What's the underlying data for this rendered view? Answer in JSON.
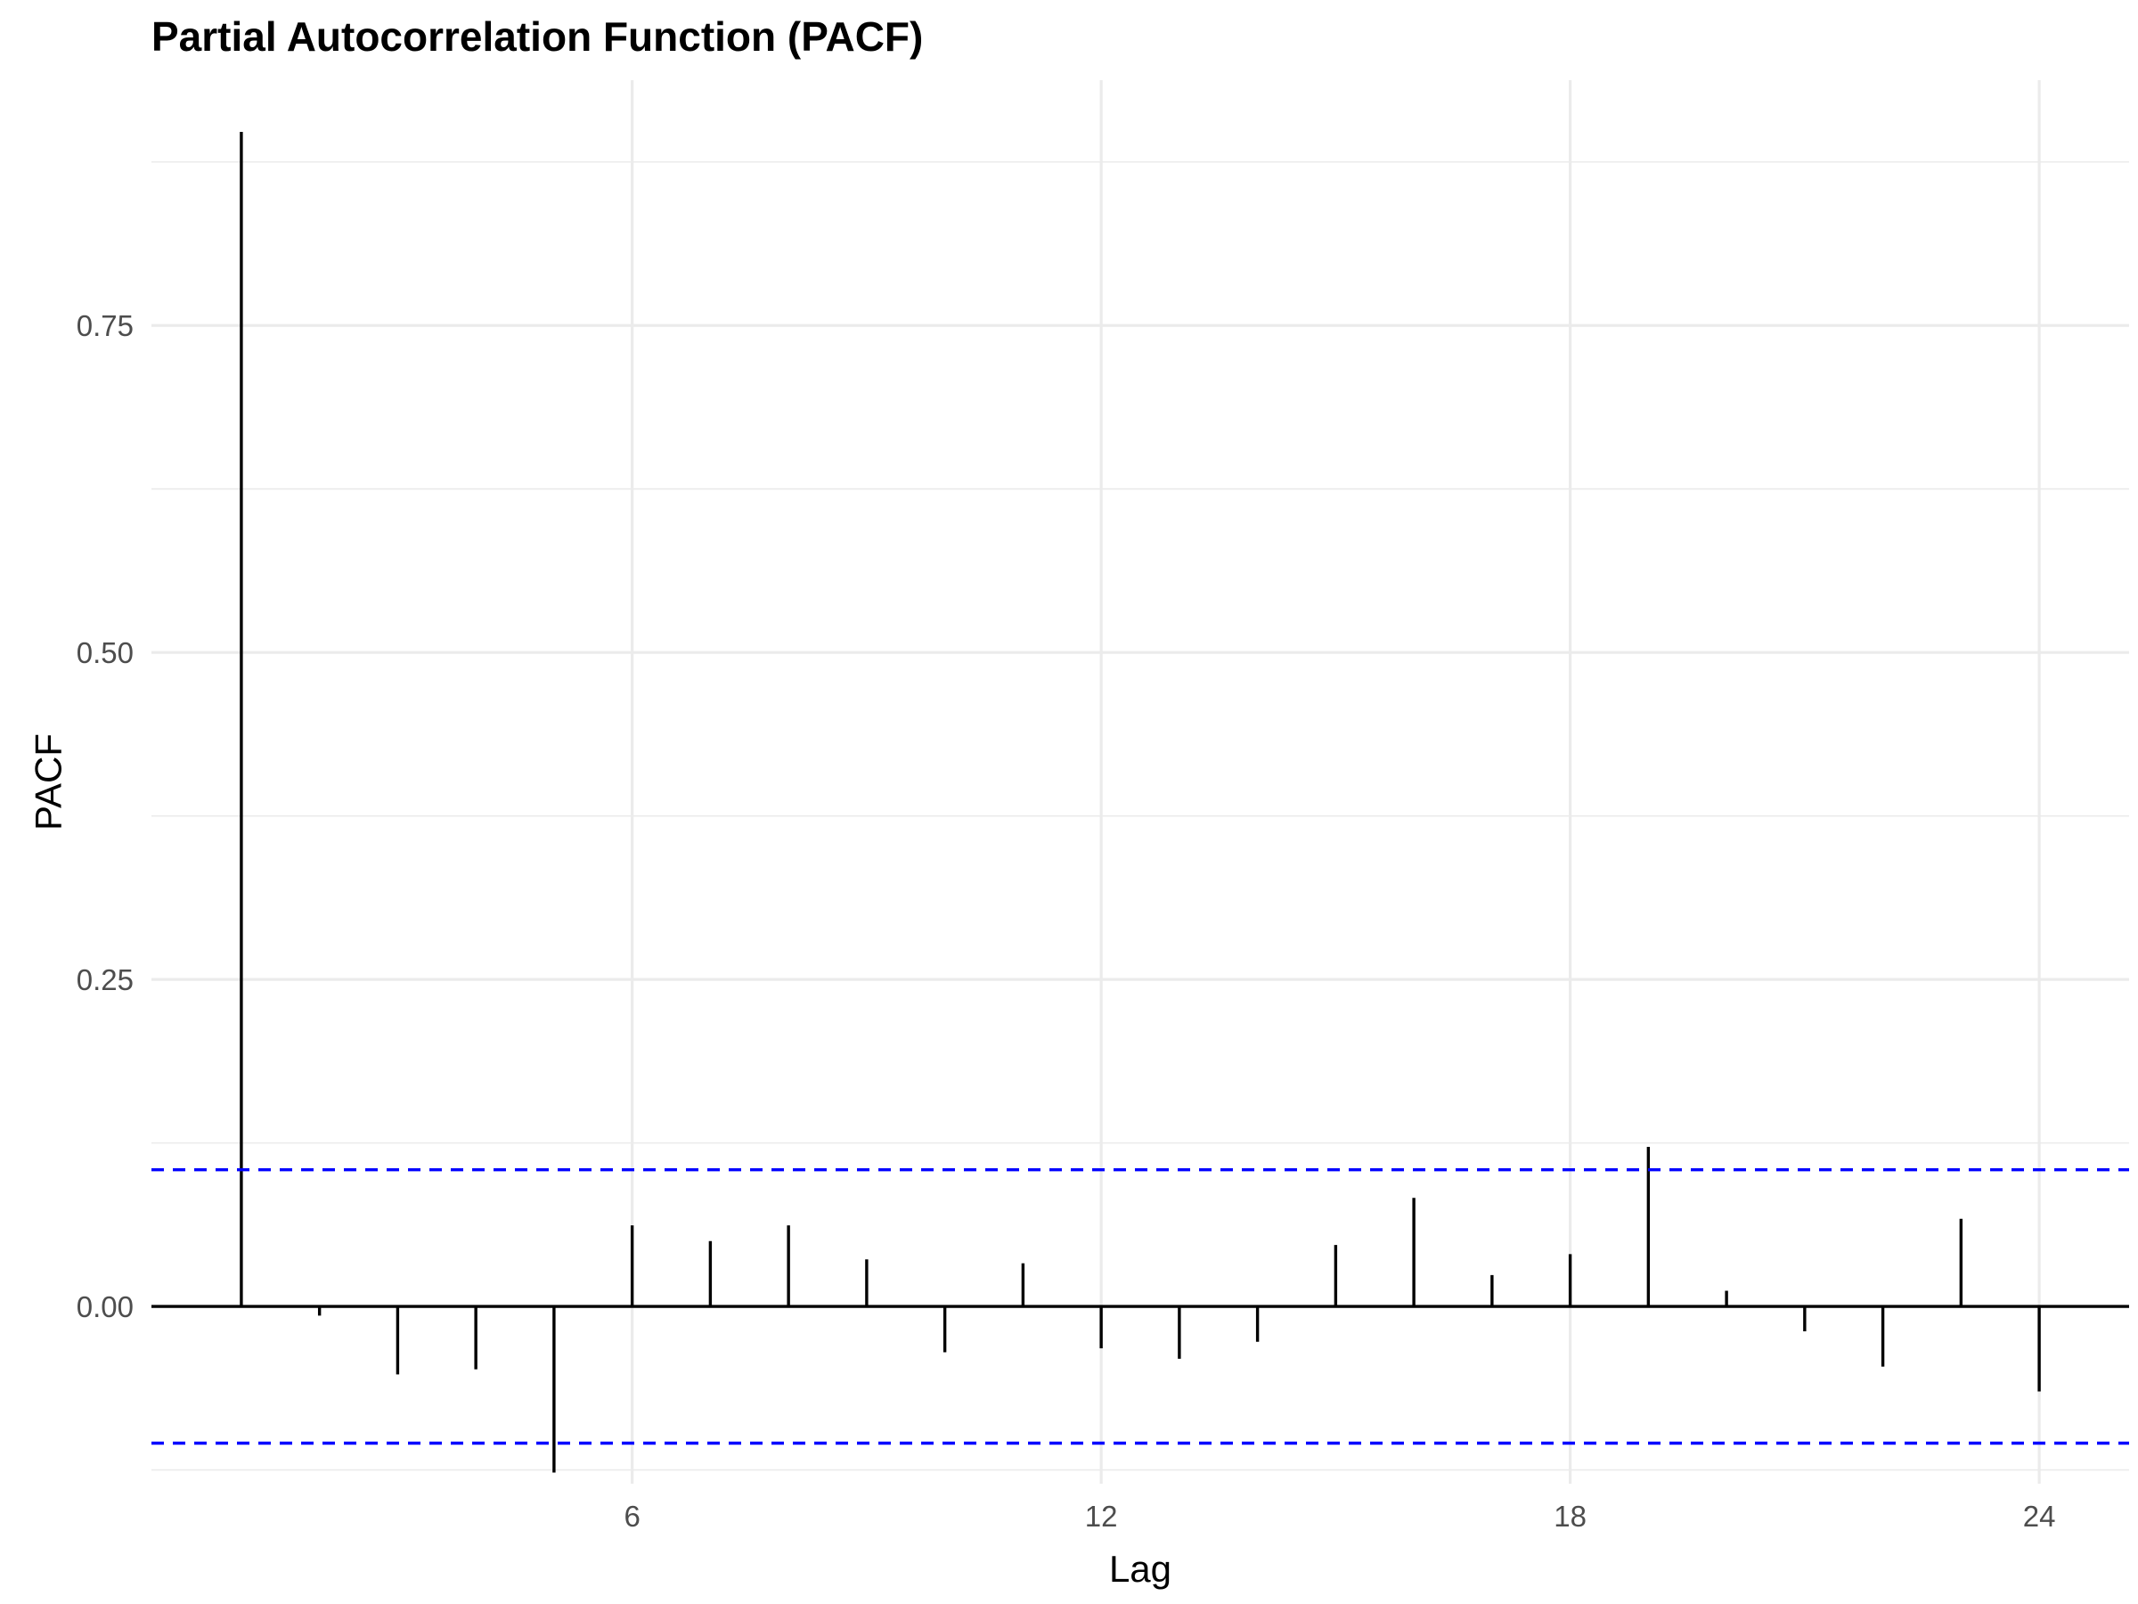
{
  "chart_data": {
    "type": "bar",
    "title": "Partial Autocorrelation Function (PACF)",
    "xlabel": "Lag",
    "ylabel": "PACF",
    "x": [
      1,
      2,
      3,
      4,
      5,
      6,
      7,
      8,
      9,
      10,
      11,
      12,
      13,
      14,
      15,
      16,
      17,
      18,
      19,
      20,
      21,
      22,
      23,
      24
    ],
    "values": [
      0.898,
      -0.007,
      -0.052,
      -0.048,
      -0.127,
      0.062,
      0.05,
      0.062,
      0.036,
      -0.035,
      0.033,
      -0.032,
      -0.04,
      -0.027,
      0.047,
      0.083,
      0.024,
      0.04,
      0.122,
      0.012,
      -0.019,
      -0.046,
      0.067,
      -0.065
    ],
    "confidence_bound": 0.1045,
    "xlim": [
      -0.15,
      25.15
    ],
    "ylim": [
      -0.1355,
      0.9375
    ],
    "x_ticks": [
      6,
      12,
      18,
      24
    ],
    "x_tick_labels": [
      "6",
      "12",
      "18",
      "24"
    ],
    "y_ticks": [
      0,
      0.25,
      0.5,
      0.75
    ],
    "y_tick_labels": [
      "0.00",
      "0.25",
      "0.50",
      "0.75"
    ],
    "grid": true,
    "colors": {
      "bars": "#000000",
      "confidence_lines": "#0000ff",
      "grid": "#ebebeb"
    }
  }
}
